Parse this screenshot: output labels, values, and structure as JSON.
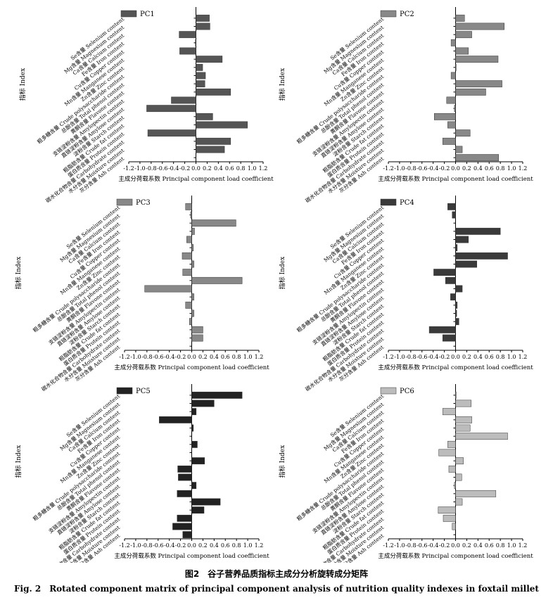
{
  "figure": {
    "caption_cn": "图2　谷子营养品质指标主成分分析旋转成分矩阵",
    "caption_en": "Fig. 2　Rotated component matrix of principal component analysis of nutrition quality indexes in foxtail millet"
  },
  "chart_data": [
    {
      "type": "bar",
      "orientation": "horizontal",
      "name": "PC1",
      "color": "#555555",
      "ylabel": "指标 Index",
      "xlabel": "主成分荷载系数 Principal component load coefficient",
      "xlim": [
        -1.2,
        1.2
      ],
      "xticks": [
        "-1.2",
        "-1.0",
        "-0.8",
        "-0.6",
        "-0.4",
        "-0.2",
        "0.0",
        "0.2",
        "0.4",
        "0.6",
        "0.8",
        "1.0",
        "1.2"
      ],
      "categories": [
        "Se含量 Selenium content",
        "Mg含量 Magnesium content",
        "Ca含量 Calcium content",
        "Fe含量 Iron content",
        "Cu含量 Copper content",
        "Mn含量 Manganese content",
        "Zn含量 Zinc content",
        "粗多糖含量 Crude polysaccharide content",
        "总酚含量 Total phenol content",
        "黄酮含量 Flavone content",
        "支链淀粉含量 Amylopectin content",
        "直链淀粉含量 Amylose content",
        "淀粉含量 Starch content",
        "粗脂肪含量 Crude fat content",
        "蛋白质含量 Protein content",
        "碳水化合物含量 Carbohydrate content",
        "水分含量 Moisture content",
        "灰分含量 Ash content"
      ],
      "values": [
        0.24,
        0.25,
        -0.3,
        -0.01,
        -0.29,
        0.47,
        0.12,
        0.17,
        0.16,
        0.62,
        -0.44,
        -0.88,
        0.3,
        0.92,
        -0.86,
        0.62,
        0.51,
        0
      ]
    },
    {
      "type": "bar",
      "orientation": "horizontal",
      "name": "PC2",
      "color": "#888888",
      "ylabel": "指标 Index",
      "xlabel": "主成分荷载系数 Principal component load coefficient",
      "xlim": [
        -1.2,
        1.2
      ],
      "xticks": [
        "-1.2",
        "-1.0",
        "-0.8",
        "-0.6",
        "-0.4",
        "-0.2",
        "0.0",
        "0.2",
        "0.4",
        "0.6",
        "0.8",
        "1.0",
        "1.2"
      ],
      "categories": [
        "Se含量 Selenium content",
        "Mg含量 Magnesium content",
        "Ca含量 Calcium content",
        "Fe含量 Iron content",
        "Cu含量 Copper content",
        "Mn含量 Manganese content",
        "Zn含量 Zinc content",
        "粗多糖含量 Crude polysaccharide content",
        "总酚含量 Total phenol content",
        "黄酮含量 Flavone content",
        "支链淀粉含量 Amylopectin content",
        "直链淀粉含量 Amylose content",
        "淀粉含量 Starch content",
        "粗脂肪含量 Crude fat content",
        "蛋白质含量 Protein content",
        "碳水化合物含量 Carbohydrate content",
        "水分含量 Moisture content",
        "灰分含量 Ash content"
      ],
      "values": [
        0.16,
        0.87,
        0.29,
        -0.08,
        0.23,
        0.76,
        0.01,
        -0.08,
        0.83,
        0.54,
        -0.16,
        -0.02,
        -0.38,
        -0.14,
        0.26,
        -0.23,
        0.12,
        0.77
      ]
    },
    {
      "type": "bar",
      "orientation": "horizontal",
      "name": "PC3",
      "color": "#888888",
      "ylabel": "指标 Index",
      "xlabel": "主成分荷载系数 Principal component load coefficient",
      "xlim": [
        -1.2,
        1.2
      ],
      "xticks": [
        "-1.2",
        "-1.0",
        "-0.8",
        "-0.6",
        "-0.4",
        "-0.2",
        "0.0",
        "0.2",
        "0.4",
        "0.6",
        "0.8",
        "1.0",
        "1.2"
      ],
      "categories": [
        "Se含量 Selenium content",
        "Mg含量 Magnesium content",
        "Ca含量 Calcium content",
        "Fe含量 Iron content",
        "Cu含量 Copper content",
        "Mn含量 Manganese content",
        "Zn含量 Zinc content",
        "粗多糖含量 Crude polysaccharide content",
        "总酚含量 Total phenol content",
        "黄酮含量 Flavone content",
        "支链淀粉含量 Amylopectin content",
        "直链淀粉含量 Amylose content",
        "淀粉含量 Starch content",
        "粗脂肪含量 Crude fat content",
        "蛋白质含量 Protein content",
        "碳水化合物含量 Carbohydrate content",
        "水分含量 Moisture content",
        "灰分含量 Ash content"
      ],
      "values": [
        -0.11,
        -0.02,
        0.79,
        0.05,
        -0.09,
        0.03,
        -0.17,
        0.04,
        -0.16,
        0.9,
        -0.84,
        0.04,
        -0.11,
        0.04,
        -0.04,
        0.2,
        0.2,
        0
      ]
    },
    {
      "type": "bar",
      "orientation": "horizontal",
      "name": "PC4",
      "color": "#3a3a3a",
      "ylabel": "指标 Index",
      "xlabel": "主成分荷载系数 Principal component load coefficient",
      "xlim": [
        -1.2,
        1.2
      ],
      "xticks": [
        "-1.2",
        "-1.0",
        "-0.8",
        "-0.6",
        "-0.4",
        "-0.2",
        "0.0",
        "0.2",
        "0.4",
        "0.6",
        "0.8",
        "1.0",
        "1.2"
      ],
      "categories": [
        "Se含量 Selenium content",
        "Mg含量 Magnesium content",
        "Ca含量 Calcium content",
        "Fe含量 Iron content",
        "Cu含量 Copper content",
        "Mn含量 Manganese content",
        "Zn含量 Zinc content",
        "粗多糖含量 Crude polysaccharide content",
        "总酚含量 Total phenol content",
        "黄酮含量 Flavone content",
        "支链淀粉含量 Amylopectin content",
        "直链淀粉含量 Amylose content",
        "淀粉含量 Starch content",
        "粗脂肪含量 Crude fat content",
        "蛋白质含量 Protein content",
        "碳水化合物含量 Carbohydrate content",
        "水分含量 Moisture content",
        "灰分含量 Ash content"
      ],
      "values": [
        -0.14,
        -0.06,
        0,
        0.8,
        0.23,
        0.03,
        0.93,
        0.38,
        -0.39,
        -0.18,
        0.12,
        -0.09,
        0.03,
        0.02,
        0.06,
        -0.47,
        -0.23,
        0
      ]
    },
    {
      "type": "bar",
      "orientation": "horizontal",
      "name": "PC5",
      "color": "#222222",
      "ylabel": "指标 Index",
      "xlabel": "主成分荷载系数 Principal component load coefficient",
      "xlim": [
        -1.2,
        1.2
      ],
      "xticks": [
        "-1.2",
        "-1.0",
        "-0.8",
        "-0.6",
        "-0.4",
        "-0.2",
        "0.0",
        "0.2",
        "0.4",
        "0.6",
        "0.8",
        "1.0",
        "1.2"
      ],
      "categories": [
        "Se含量 Selenium content",
        "Mg含量 Magnesium content",
        "Ca含量 Calcium content",
        "Fe含量 Iron content",
        "Cu含量 Copper content",
        "Mn含量 Manganese content",
        "Zn含量 Zinc content",
        "粗多糖含量 Crude polysaccharide content",
        "总酚含量 Total phenol content",
        "黄酮含量 Flavone content",
        "支链淀粉含量 Amylopectin content",
        "直链淀粉含量 Amylose content",
        "淀粉含量 Starch content",
        "粗脂肪含量 Crude fat content",
        "蛋白质含量 Protein content",
        "碳水化合物含量 Carbohydrate content",
        "水分含量 Moisture content",
        "灰分含量 Ash content"
      ],
      "values": [
        0.9,
        0.4,
        0.08,
        -0.58,
        0.03,
        0,
        0.1,
        0,
        0.23,
        -0.25,
        -0.24,
        0.08,
        -0.26,
        0.51,
        0.22,
        -0.26,
        -0.34,
        -0.16
      ]
    },
    {
      "type": "bar",
      "orientation": "horizontal",
      "name": "PC6",
      "color": "#bcbcbc",
      "ylabel": "指标 Index",
      "xlabel": "主成分荷载系数 Principal component load coefficient",
      "xlim": [
        -1.2,
        1.2
      ],
      "xticks": [
        "-1.2",
        "-1.0",
        "-0.8",
        "-0.6",
        "-0.4",
        "-0.2",
        "0.0",
        "0.2",
        "0.4",
        "0.6",
        "0.8",
        "1.0",
        "1.2"
      ],
      "categories": [
        "Se含量 Selenium content",
        "Mg含量 Magnesium content",
        "Ca含量 Calcium content",
        "Fe含量 Iron content",
        "Cu含量 Copper content",
        "Mn含量 Manganese content",
        "Zn含量 Zinc content",
        "粗多糖含量 Crude polysaccharide content",
        "总酚含量 Total phenol content",
        "黄酮含量 Flavone content",
        "支链淀粉含量 Amylopectin content",
        "直链淀粉含量 Amylose content",
        "淀粉含量 Starch content",
        "粗脂肪含量 Crude fat content",
        "蛋白质含量 Protein content",
        "碳水化合物含量 Carbohydrate content",
        "水分含量 Moisture content",
        "灰分含量 Ash content"
      ],
      "values": [
        0.01,
        0.28,
        -0.23,
        0.29,
        0.26,
        0.93,
        -0.14,
        -0.3,
        0.14,
        -0.12,
        0.11,
        -0.02,
        0.72,
        0.12,
        -0.31,
        -0.22,
        -0.06,
        0
      ]
    }
  ]
}
